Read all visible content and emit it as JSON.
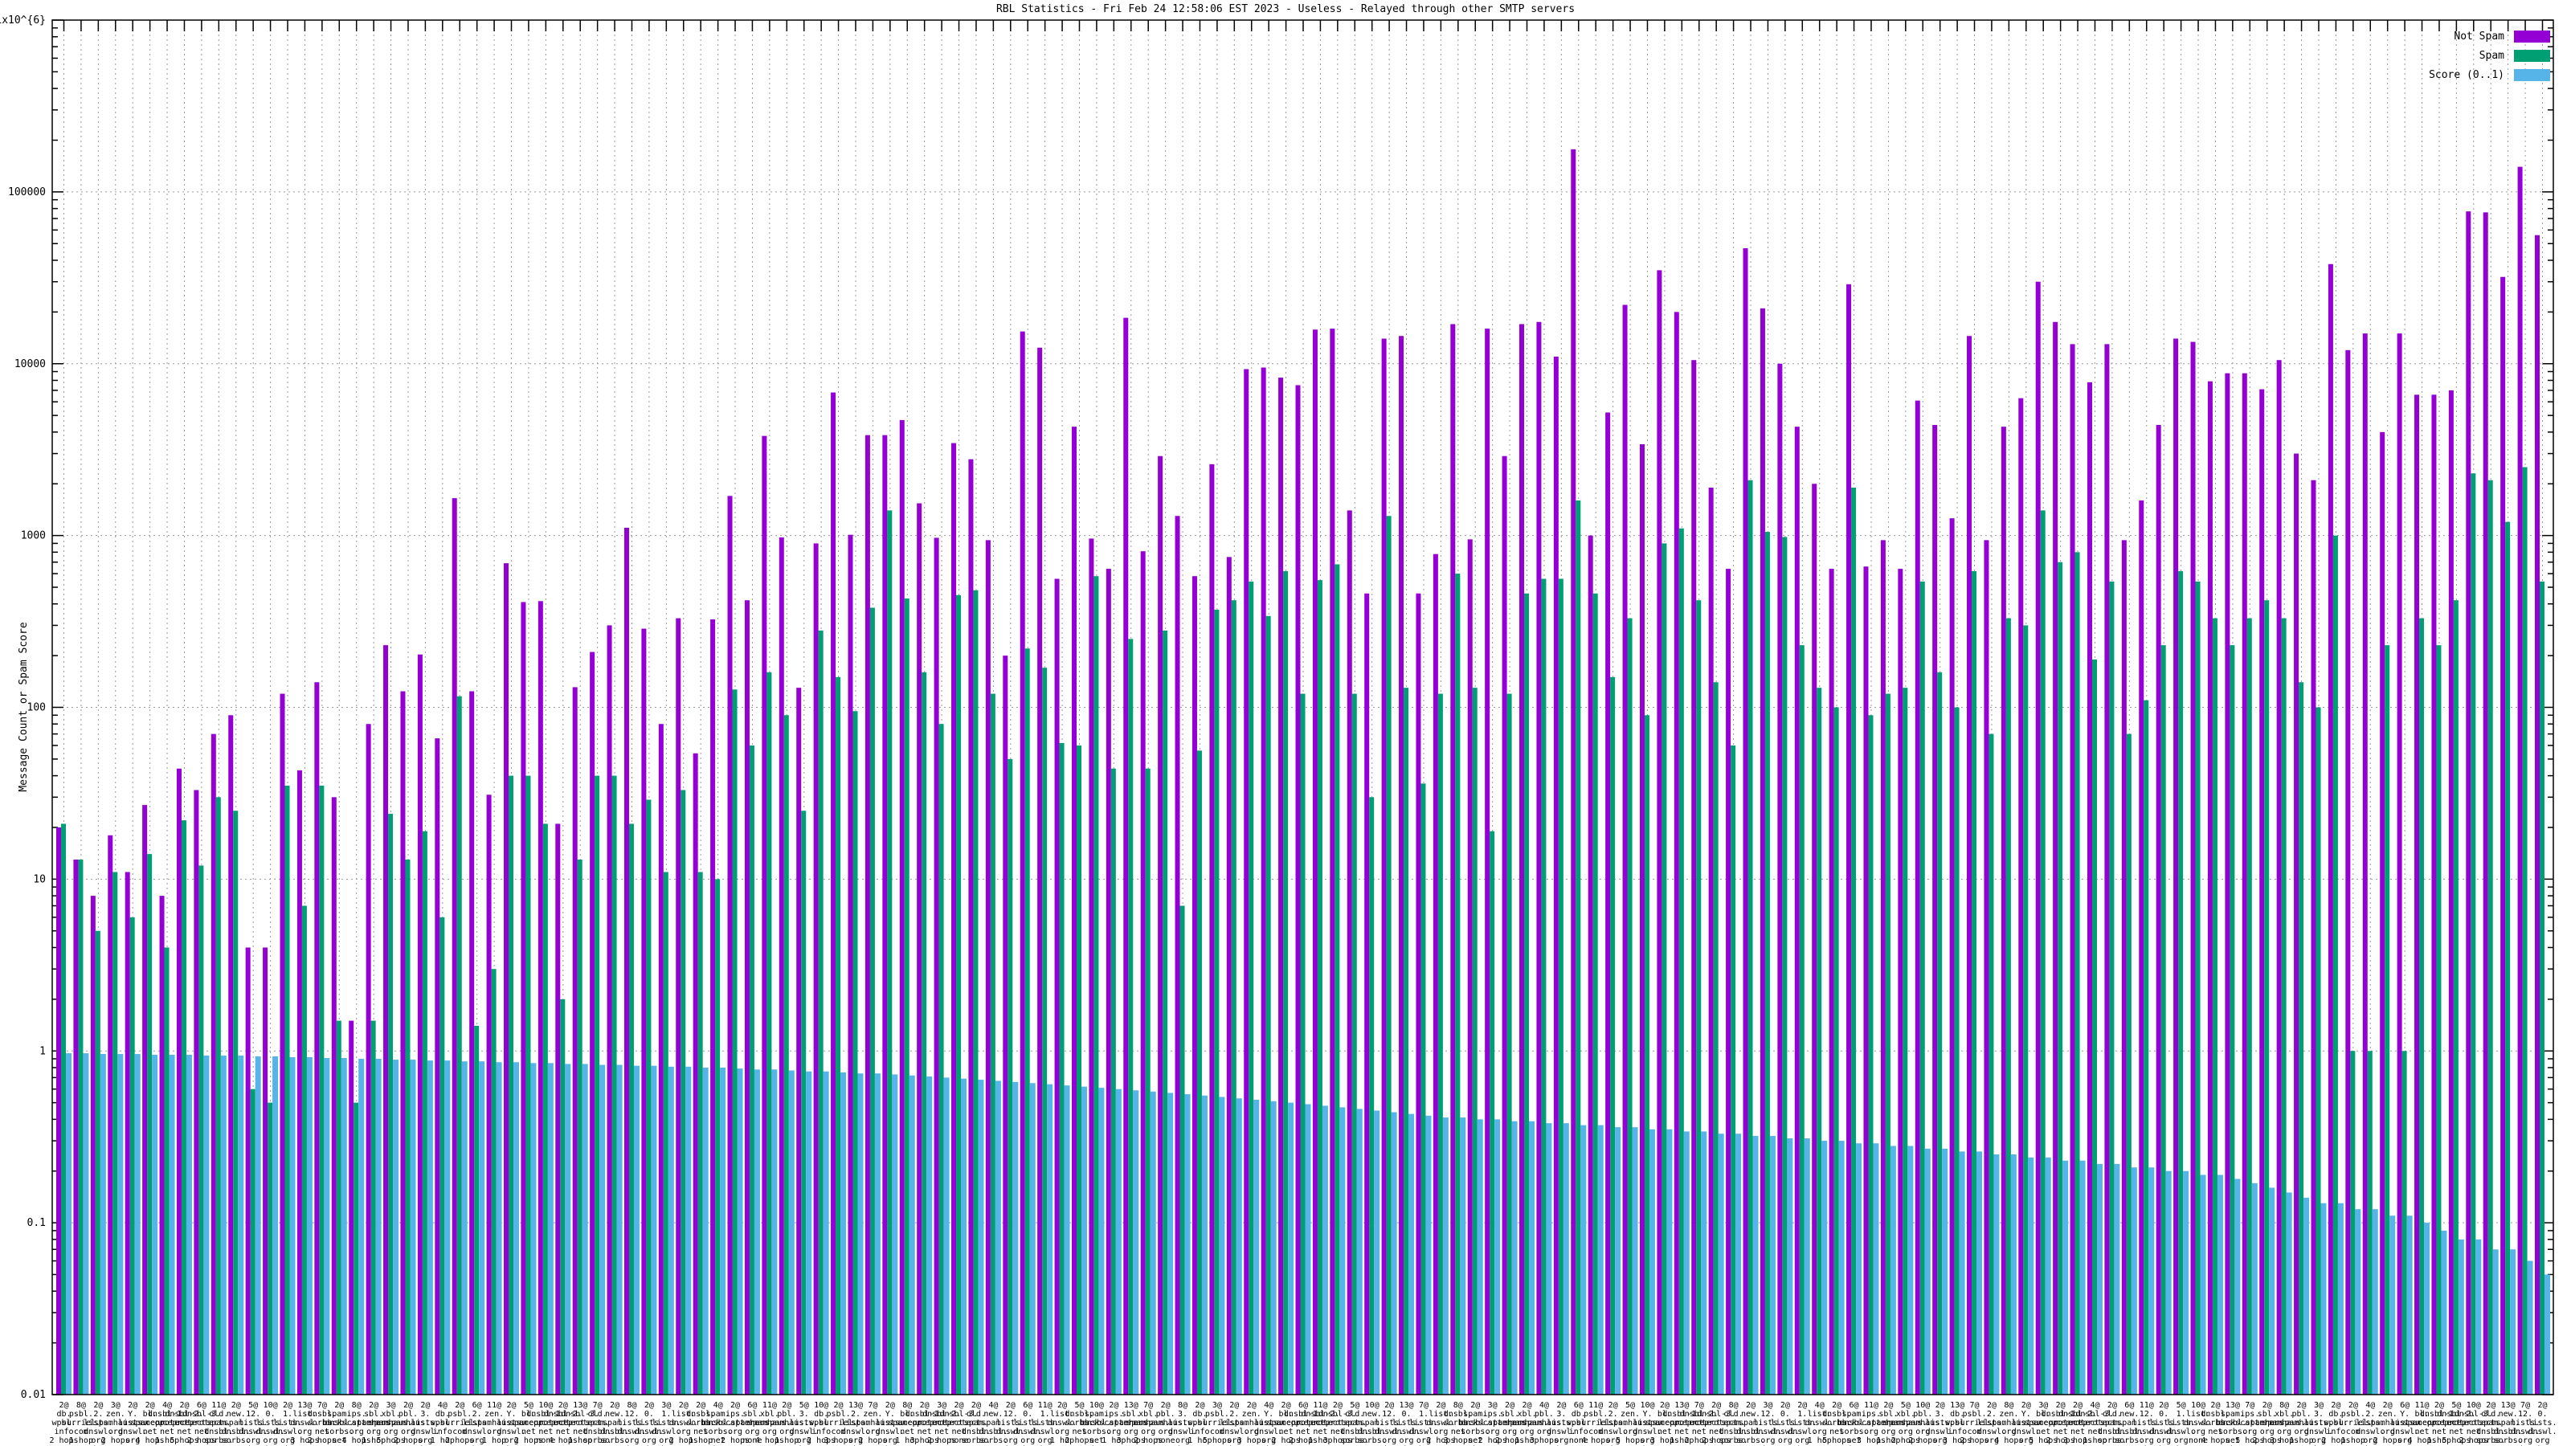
{
  "chart_data": {
    "type": "bar",
    "title": "RBL Statistics - Fri Feb 24 12:58:06 EST 2023 - Useless - Relayed through other SMTP servers",
    "ylabel": "Message Count or Spam Score",
    "y_scale": "log",
    "ylim": [
      0.01,
      1000000
    ],
    "grid": true,
    "legend_position": "top-right",
    "colors": {
      "not_spam": "#9400d3",
      "spam": "#009e73",
      "score": "#56b4e9",
      "grid": "#9a9a9a",
      "axis": "#000000"
    },
    "yticks": [
      {
        "value": 1000000,
        "label": "1x10^{6}"
      },
      {
        "value": 100000,
        "label": "100000"
      },
      {
        "value": 10000,
        "label": "10000"
      },
      {
        "value": 1000,
        "label": "1000"
      },
      {
        "value": 100,
        "label": "100"
      },
      {
        "value": 10,
        "label": "10"
      },
      {
        "value": 1,
        "label": "1"
      },
      {
        "value": 0.1,
        "label": "0.1"
      },
      {
        "value": 0.01,
        "label": "0.01"
      }
    ],
    "series": [
      {
        "name": "Not Spam",
        "color": "#9400d3",
        "values": [
          20,
          13,
          8,
          18,
          11,
          27,
          8,
          44,
          33,
          70,
          90,
          4,
          4,
          120,
          43,
          140,
          30,
          1.5,
          80,
          230,
          124,
          203,
          66,
          1650,
          124,
          31,
          690,
          410,
          415,
          21,
          131,
          210,
          300,
          1110,
          287,
          80,
          330,
          54,
          325,
          1700,
          420,
          3800,
          975,
          130,
          900,
          6800,
          1010,
          3840,
          3840,
          4700,
          1540,
          970,
          3450,
          2780,
          940,
          200,
          15400,
          12400,
          560,
          4300,
          960,
          640,
          18500,
          810,
          2900,
          1300,
          580,
          2600,
          750,
          9300,
          9500,
          8300,
          7500,
          15800,
          16000,
          1400,
          460,
          14000,
          14500,
          460,
          780,
          17000,
          950,
          16000,
          2900,
          17000,
          17500,
          11000,
          177000,
          1000,
          5200,
          22000,
          3400,
          35000,
          20000,
          10500,
          1900,
          640,
          47000,
          21000,
          10000,
          4300,
          2000,
          640,
          29000,
          660,
          940,
          640,
          6100,
          4400,
          1260,
          14500,
          940,
          4300,
          6300,
          30000,
          17500,
          13000,
          7800,
          13000,
          940,
          1600,
          4400,
          14000,
          13400,
          7900,
          8800,
          8800,
          7100,
          10500,
          3000,
          2100,
          38000,
          12000,
          15000,
          4000,
          15000,
          6600,
          6600,
          7000,
          77000,
          76000,
          32000,
          140000,
          56000
        ]
      },
      {
        "name": "Spam",
        "color": "#009e73",
        "values": [
          21,
          13,
          5,
          11,
          6,
          14,
          4,
          22,
          12,
          30,
          25,
          0.6,
          0.5,
          35,
          7,
          35,
          1.5,
          0.5,
          1.5,
          24,
          13,
          19,
          6,
          116,
          1.4,
          3,
          40,
          40,
          21,
          2,
          13,
          40,
          40,
          21,
          29,
          11,
          33,
          11,
          10,
          127,
          60,
          160,
          90,
          25,
          280,
          150,
          95,
          380,
          1400,
          430,
          160,
          80,
          450,
          480,
          120,
          50,
          220,
          170,
          62,
          60,
          580,
          44,
          250,
          44,
          280,
          7,
          56,
          370,
          420,
          540,
          340,
          620,
          120,
          550,
          680,
          120,
          30,
          1300,
          130,
          36,
          120,
          600,
          130,
          19,
          120,
          460,
          560,
          560,
          1600,
          460,
          150,
          330,
          90,
          900,
          1100,
          420,
          140,
          60,
          2100,
          1050,
          980,
          230,
          130,
          100,
          1900,
          90,
          120,
          130,
          540,
          160,
          100,
          620,
          70,
          330,
          300,
          1400,
          700,
          800,
          190,
          540,
          70,
          110,
          230,
          620,
          540,
          330,
          230,
          330,
          420,
          330,
          140,
          100,
          1000,
          1,
          1,
          230,
          1,
          330,
          230,
          420,
          2300,
          2100,
          1200,
          2500,
          540
        ]
      },
      {
        "name": "Score (0..1)",
        "color": "#56b4e9",
        "values": [
          0.97,
          0.97,
          0.96,
          0.96,
          0.96,
          0.95,
          0.95,
          0.95,
          0.94,
          0.94,
          0.94,
          0.93,
          0.93,
          0.92,
          0.92,
          0.91,
          0.91,
          0.9,
          0.9,
          0.89,
          0.89,
          0.88,
          0.88,
          0.87,
          0.87,
          0.86,
          0.86,
          0.85,
          0.85,
          0.84,
          0.84,
          0.83,
          0.83,
          0.82,
          0.82,
          0.81,
          0.81,
          0.8,
          0.8,
          0.79,
          0.78,
          0.78,
          0.77,
          0.76,
          0.76,
          0.75,
          0.74,
          0.74,
          0.73,
          0.72,
          0.71,
          0.7,
          0.69,
          0.68,
          0.67,
          0.66,
          0.65,
          0.64,
          0.63,
          0.62,
          0.61,
          0.6,
          0.59,
          0.58,
          0.57,
          0.56,
          0.55,
          0.54,
          0.53,
          0.52,
          0.51,
          0.5,
          0.49,
          0.48,
          0.47,
          0.46,
          0.45,
          0.44,
          0.43,
          0.42,
          0.41,
          0.41,
          0.4,
          0.4,
          0.39,
          0.39,
          0.38,
          0.38,
          0.37,
          0.37,
          0.36,
          0.36,
          0.35,
          0.35,
          0.34,
          0.34,
          0.33,
          0.33,
          0.32,
          0.32,
          0.31,
          0.31,
          0.3,
          0.3,
          0.29,
          0.29,
          0.28,
          0.28,
          0.27,
          0.27,
          0.26,
          0.26,
          0.25,
          0.25,
          0.24,
          0.24,
          0.23,
          0.23,
          0.22,
          0.22,
          0.21,
          0.21,
          0.2,
          0.2,
          0.19,
          0.19,
          0.18,
          0.17,
          0.16,
          0.15,
          0.14,
          0.13,
          0.13,
          0.12,
          0.12,
          0.11,
          0.11,
          0.1,
          0.09,
          0.08,
          0.08,
          0.07,
          0.07,
          0.06,
          0.05
        ]
      }
    ],
    "categories": [
      "2@\ndb.\nwpbl.\ninfo\n2 hops",
      "8@\npsbl.\nsurriel.\ncom\n1 hop",
      "2@\n2.\nlists.\ndnswl.\norg\n3 hops",
      "3@\nzen.\nspamhaus.\norg\n2 hops",
      "2@\nY.\nlists.\ndnswl.\norg\nnone",
      "2@\nbl.\nspamcop.\nnet\n4 hops",
      "4@\ndnsbl-1.\nuceprotect.\nnet\n1 hop",
      "2@\ndnsbl-2.\nuceprotect.\nnet\n5 hops",
      "6@\ndnsbl-3.\nuceprotect.\nnet\n2 hops",
      "11@\nold.\nspam.\ndnsbl.\nsorbs.\nnet\n3 hops",
      "2@\nnew.\nspam.\ndnsbl.\nsorbs.\nnet\n1 hop",
      "5@\n12.\nlists.\ndnswl.\norg\n2 hops",
      "10@\n0.\nlists.\ndnswl.\norg\n2 hops",
      "2@\n1.\nlists.\ndnswl.\norg\n1 hop",
      "13@\nlist.\ndnswl.\norg\n3 hops",
      "7@\ndnsbl.\nsorbs.\nnet\n2 hops",
      "2@\nspam.\ndnsbl.\nsorbs.\nnet\nnone",
      "8@\nips.\nbackscatterer.\norg\n4 hops",
      "2@\nsbl.\nspamhaus.\norg\n1 hop",
      "3@\nxbl.\nspamhaus.\norg\n5 hops",
      "2@\npbl.\nspamhaus.\norg\n2 hops",
      "2@\n3.\nlists.\ndnswl.\norg\n3 hops",
      "4@\ndb.\nwpbl.\ninfo\n1 hop",
      "2@\npsbl.\nsurriel.\ncom\n2 hops",
      "6@\n2.\nlists.\ndnswl.\norg\n2 hops",
      "11@\nzen.\nspamhaus.\norg\n1 hop",
      "2@\nY.\nlists.\ndnswl.\norg\n3 hops",
      "5@\nbl.\nspamcop.\nnet\n2 hops",
      "10@\ndnsbl-1.\nuceprotect.\nnet\nnone",
      "2@\ndnsbl-2.\nuceprotect.\nnet\n4 hops",
      "13@\ndnsbl-3.\nuceprotect.\nnet\n1 hop",
      "7@\nold.\nspam.\ndnsbl.\nsorbs.\nnet\n5 hops",
      "2@\nnew.\nspam.\ndnsbl.\nsorbs.\nnet\n2 hops",
      "8@\n12.\nlists.\ndnswl.\norg\n3 hops",
      "2@\n0.\nlists.\ndnswl.\norg\n1 hop",
      "3@\n1.\nlists.\ndnswl.\norg\n2 hops",
      "2@\nlist.\ndnswl.\norg\n2 hops",
      "2@\ndnsbl.\nsorbs.\nnet\n1 hop",
      "4@\nspam.\ndnsbl.\nsorbs.\nnet\n3 hops",
      "2@\nips.\nbackscatterer.\norg\n2 hops",
      "6@\nsbl.\nspamhaus.\norg\nnone",
      "11@\nxbl.\nspamhaus.\norg\n4 hops",
      "2@\npbl.\nspamhaus.\norg\n1 hop",
      "5@\n3.\nlists.\ndnswl.\norg\n5 hops",
      "10@\ndb.\nwpbl.\ninfo\n2 hops",
      "2@\npsbl.\nsurriel.\ncom\n3 hops",
      "13@\n2.\nlists.\ndnswl.\norg\n1 hop",
      "7@\nzen.\nspamhaus.\norg\n2 hops",
      "2@\nY.\nlists.\ndnswl.\norg\n2 hops",
      "8@\nbl.\nspamcop.\nnet\n1 hop",
      "2@\ndnsbl-1.\nuceprotect.\nnet\n3 hops",
      "3@\ndnsbl-2.\nuceprotect.\nnet\n2 hops",
      "2@\ndnsbl-3.\nuceprotect.\nnet\nnone",
      "2@\nold.\nspam.\ndnsbl.\nsorbs.\nnet\n4 hops",
      "4@\nnew.\nspam.\ndnsbl.\nsorbs.\nnet\n1 hop",
      "2@\n12.\nlists.\ndnswl.\norg\n5 hops",
      "6@\n0.\nlists.\ndnswl.\norg\n2 hops",
      "11@\n1.\nlists.\ndnswl.\norg\n3 hops",
      "2@\nlist.\ndnswl.\norg\n1 hop",
      "5@\ndnsbl.\nsorbs.\nnet\n2 hops",
      "10@\nspam.\ndnsbl.\nsorbs.\nnet\n2 hops",
      "2@\nips.\nbackscatterer.\norg\n1 hop",
      "13@\nsbl.\nspamhaus.\norg\n3 hops",
      "7@\nxbl.\nspamhaus.\norg\n2 hops",
      "2@\npbl.\nspamhaus.\norg\nnone",
      "8@\n3.\nlists.\ndnswl.\norg\n4 hops",
      "2@\ndb.\nwpbl.\ninfo\n1 hop",
      "3@\npsbl.\nsurriel.\ncom\n5 hops",
      "2@\n2.\nlists.\ndnswl.\norg\n2 hops",
      "2@\nzen.\nspamhaus.\norg\n3 hops",
      "4@\nY.\nlists.\ndnswl.\norg\n1 hop",
      "2@\nbl.\nspamcop.\nnet\n2 hops",
      "6@\ndnsbl-1.\nuceprotect.\nnet\n2 hops",
      "11@\ndnsbl-2.\nuceprotect.\nnet\n1 hop",
      "2@\ndnsbl-3.\nuceprotect.\nnet\n3 hops",
      "5@\nold.\nspam.\ndnsbl.\nsorbs.\nnet\n2 hops",
      "10@\nnew.\nspam.\ndnsbl.\nsorbs.\nnet\nnone",
      "2@\n12.\nlists.\ndnswl.\norg\n4 hops",
      "13@\n0.\nlists.\ndnswl.\norg\n1 hop",
      "7@\n1.\nlists.\ndnswl.\norg\n5 hops",
      "2@\nlist.\ndnswl.\norg\n2 hops",
      "8@\ndnsbl.\nsorbs.\nnet\n3 hops",
      "2@\nspam.\ndnsbl.\nsorbs.\nnet\n1 hop",
      "3@\nips.\nbackscatterer.\norg\n2 hops",
      "2@\nsbl.\nspamhaus.\norg\n2 hops",
      "2@\nxbl.\nspamhaus.\norg\n1 hop",
      "4@\npbl.\nspamhaus.\norg\n3 hops",
      "2@\n3.\nlists.\ndnswl.\norg\n2 hops",
      "6@\ndb.\nwpbl.\ninfo\nnone",
      "11@\npsbl.\nsurriel.\ncom\n4 hops",
      "2@\n2.\nlists.\ndnswl.\norg\n1 hop",
      "5@\nzen.\nspamhaus.\norg\n5 hops",
      "10@\nY.\nlists.\ndnswl.\norg\n2 hops",
      "2@\nbl.\nspamcop.\nnet\n3 hops",
      "13@\ndnsbl-1.\nuceprotect.\nnet\n1 hop",
      "7@\ndnsbl-2.\nuceprotect.\nnet\n2 hops",
      "2@\ndnsbl-3.\nuceprotect.\nnet\n2 hops",
      "8@\nold.\nspam.\ndnsbl.\nsorbs.\nnet\n1 hop",
      "2@\nnew.\nspam.\ndnsbl.\nsorbs.\nnet\n3 hops",
      "3@\n12.\nlists.\ndnswl.\norg\n2 hops",
      "2@\n0.\nlists.\ndnswl.\norg\nnone",
      "2@\n1.\nlists.\ndnswl.\norg\n4 hops",
      "4@\nlist.\ndnswl.\norg\n1 hop",
      "2@\ndnsbl.\nsorbs.\nnet\n5 hops",
      "6@\nspam.\ndnsbl.\nsorbs.\nnet\n2 hops",
      "11@\nips.\nbackscatterer.\norg\n3 hops",
      "2@\nsbl.\nspamhaus.\norg\n1 hop",
      "5@\nxbl.\nspamhaus.\norg\n2 hops",
      "10@\npbl.\nspamhaus.\norg\n2 hops",
      "2@\n3.\nlists.\ndnswl.\norg\n1 hop",
      "13@\ndb.\nwpbl.\ninfo\n3 hops",
      "7@\npsbl.\nsurriel.\ncom\n2 hops",
      "2@\n2.\nlists.\ndnswl.\norg\nnone",
      "8@\nzen.\nspamhaus.\norg\n4 hops",
      "2@\nY.\nlists.\ndnswl.\norg\n1 hop",
      "3@\nbl.\nspamcop.\nnet\n5 hops",
      "2@\ndnsbl-1.\nuceprotect.\nnet\n2 hops",
      "2@\ndnsbl-2.\nuceprotect.\nnet\n3 hops",
      "4@\ndnsbl-3.\nuceprotect.\nnet\n1 hop",
      "2@\nold.\nspam.\ndnsbl.\nsorbs.\nnet\n2 hops",
      "6@\nnew.\nspam.\ndnsbl.\nsorbs.\nnet\n2 hops",
      "11@\n12.\nlists.\ndnswl.\norg\n1 hop",
      "2@\n0.\nlists.\ndnswl.\norg\n3 hops",
      "5@\n1.\nlists.\ndnswl.\norg\n2 hops",
      "10@\nlist.\ndnswl.\norg\nnone",
      "2@\ndnsbl.\nsorbs.\nnet\n4 hops",
      "13@\nspam.\ndnsbl.\nsorbs.\nnet\n1 hop",
      "7@\nips.\nbackscatterer.\norg\n5 hops",
      "2@\nsbl.\nspamhaus.\norg\n2 hops",
      "8@\nxbl.\nspamhaus.\norg\n3 hops",
      "2@\npbl.\nspamhaus.\norg\n1 hop",
      "3@\n3.\nlists.\ndnswl.\norg\n2 hops",
      "2@\ndb.\nwpbl.\ninfo\n2 hops",
      "2@\npsbl.\nsurriel.\ncom\n1 hop",
      "4@\n2.\nlists.\ndnswl.\norg\n3 hops",
      "2@\nzen.\nspamhaus.\norg\n2 hops",
      "6@\nY.\nlists.\ndnswl.\norg\nnone",
      "11@\nbl.\nspamcop.\nnet\n4 hops",
      "2@\ndnsbl-1.\nuceprotect.\nnet\n1 hop",
      "5@\ndnsbl-2.\nuceprotect.\nnet\n5 hops",
      "10@\ndnsbl-3.\nuceprotect.\nnet\n2 hops",
      "2@\nold.\nspam.\ndnsbl.\nsorbs.\nnet\n3 hops",
      "13@\nnew.\nspam.\ndnsbl.\nsorbs.\nnet\n1 hop",
      "7@\n12.\nlists.\ndnswl.\norg\n2 hops",
      "2@\n0.\nlists.\ndnswl.\norg\n2 hops"
    ]
  },
  "legend": {
    "not_spam_label": "Not Spam",
    "spam_label": "Spam",
    "score_label": "Score (0..1)"
  }
}
